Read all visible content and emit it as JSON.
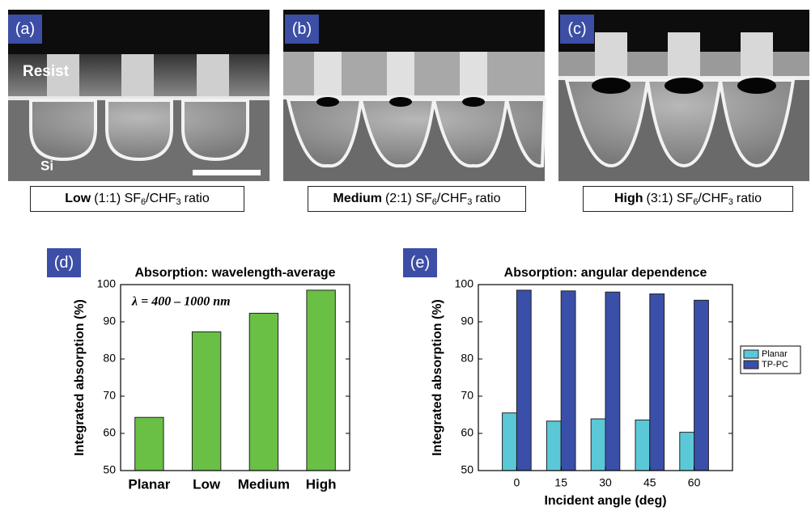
{
  "images": [
    {
      "label": "(a)",
      "texts": [
        "Resist",
        "Si"
      ],
      "caption": {
        "strength": "Low",
        "ratio": "(1:1) SF",
        "sub_a": "6",
        "gas": "/CHF",
        "sub_b": "3",
        "tail": "ratio"
      }
    },
    {
      "label": "(b)",
      "caption": {
        "strength": "Medium",
        "ratio": "(2:1) SF",
        "sub_a": "6",
        "gas": "/CHF",
        "sub_b": "3",
        "tail": "ratio"
      }
    },
    {
      "label": "(c)",
      "caption": {
        "strength": "High",
        "ratio": "(3:1) SF",
        "sub_a": "6",
        "gas": "/CHF",
        "sub_b": "3",
        "tail": "ratio"
      }
    }
  ],
  "chart_data": [
    {
      "type": "bar",
      "panel": "(d)",
      "title": "Absorption: wavelength-average",
      "annotation": "λ = 400 – 1000 nm",
      "y_label": "Integrated absorption (%)",
      "categories": [
        "Planar",
        "Low",
        "Medium",
        "High"
      ],
      "values": [
        64.3,
        87.3,
        92.3,
        98.5
      ],
      "color": "#6abf45",
      "ylim": [
        50,
        100
      ],
      "yticks": [
        50,
        60,
        70,
        80,
        90,
        100
      ]
    },
    {
      "type": "grouped-bar",
      "panel": "(e)",
      "title": "Absorption: angular dependence",
      "y_label": "Integrated absorption (%)",
      "x_label": "Incident angle (deg)",
      "categories": [
        "0",
        "15",
        "30",
        "45",
        "60"
      ],
      "series": [
        {
          "name": "Planar",
          "color": "#5bc8d8",
          "values": [
            65.5,
            63.3,
            63.9,
            63.6,
            60.3
          ]
        },
        {
          "name": "TP-PC",
          "color": "#3a4fa8",
          "values": [
            98.5,
            98.3,
            98.0,
            97.5,
            95.8
          ]
        }
      ],
      "ylim": [
        50,
        100
      ],
      "yticks": [
        50,
        60,
        70,
        80,
        90,
        100
      ],
      "legend": "right"
    }
  ]
}
